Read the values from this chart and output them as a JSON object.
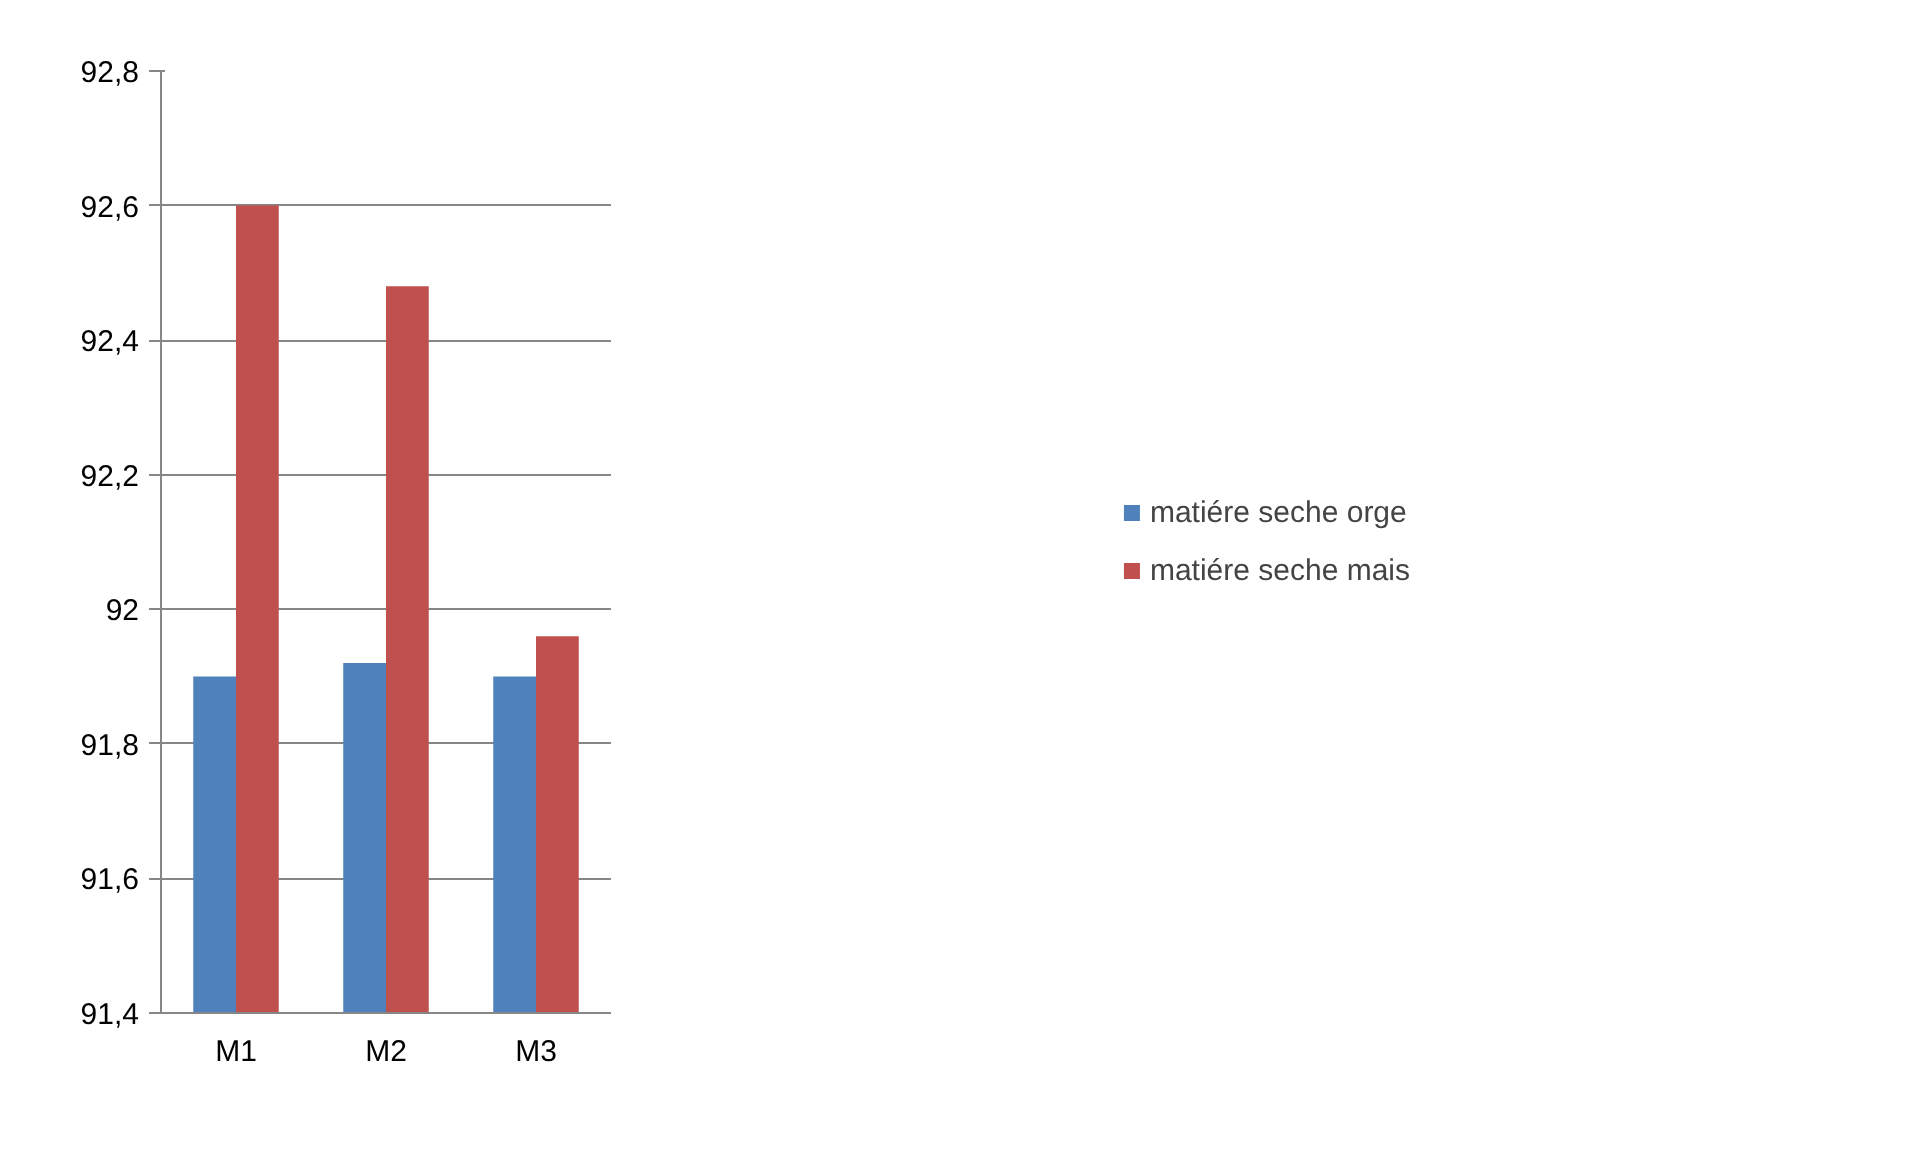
{
  "chart_data": {
    "type": "bar",
    "categories": [
      "M1",
      "M2",
      "M3"
    ],
    "series": [
      {
        "name": "matiére seche orge",
        "color": "#4f81bd",
        "values": [
          91.9,
          91.92,
          91.9
        ]
      },
      {
        "name": "matiére seche mais",
        "color": "#c0504d",
        "values": [
          92.6,
          92.48,
          91.96
        ]
      }
    ],
    "ylim": [
      91.4,
      92.8
    ],
    "yticks": [
      {
        "value": 91.4,
        "label": "91,4"
      },
      {
        "value": 91.6,
        "label": "91,6"
      },
      {
        "value": 91.8,
        "label": "91,8"
      },
      {
        "value": 92,
        "label": "92"
      },
      {
        "value": 92.2,
        "label": "92,2"
      },
      {
        "value": 92.4,
        "label": "92,4"
      },
      {
        "value": 92.6,
        "label": "92,6"
      },
      {
        "value": 92.8,
        "label": "92,8"
      }
    ],
    "grid": "y",
    "legend": "right"
  }
}
